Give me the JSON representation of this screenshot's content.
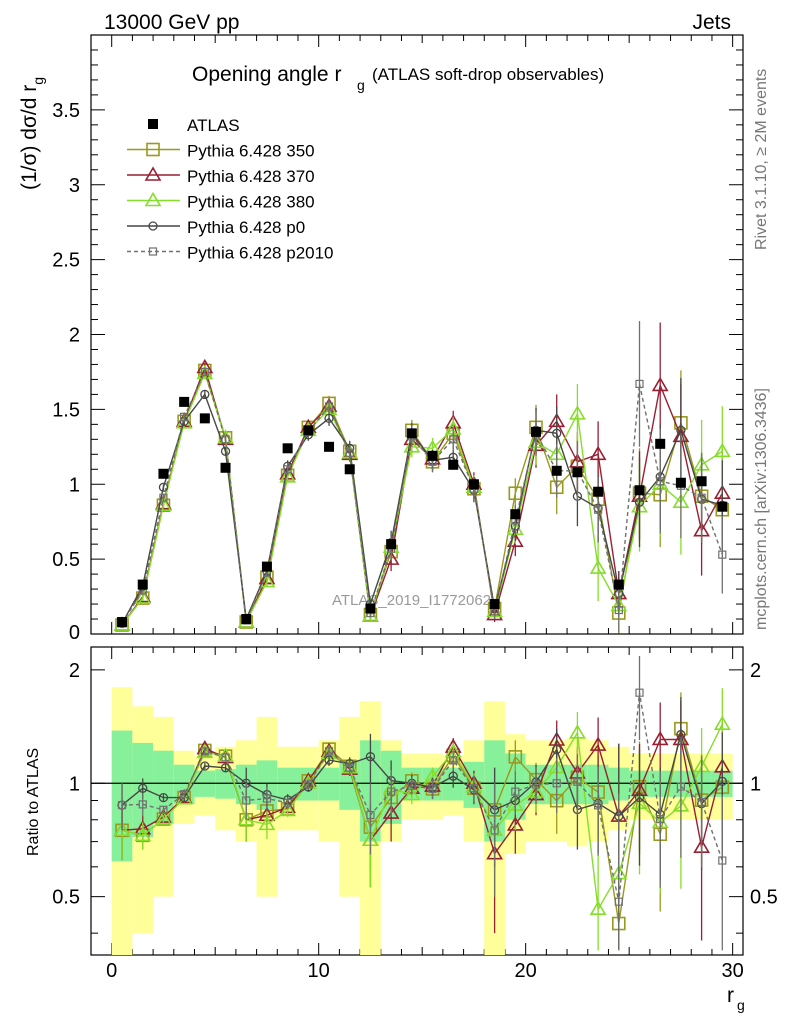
{
  "header": {
    "left": "13000 GeV pp",
    "right": "Jets"
  },
  "side_labels": {
    "rivet": "Rivet 3.1.10, ≥ 2M events",
    "mcplots": "mcplots.cern.ch [arXiv:1306.3436]"
  },
  "watermark": "ATLAS_2019_I1772062",
  "chart_data": {
    "type": "line",
    "title_main": "Opening angle r",
    "title_sub": "g",
    "title_suffix": "(ATLAS soft-drop observables)",
    "ylabel_main": "(1/σ) dσ/d r",
    "ylabel_sub": "g",
    "xlabel_main": "r",
    "xlabel_sub": "g",
    "ratio_ylabel": "Ratio to ATLAS",
    "xlim": [
      -1,
      30.5
    ],
    "ylim": [
      0,
      4
    ],
    "ratio_ylim": [
      0.35,
      2.3
    ],
    "x_ticks": [
      "0",
      "10",
      "20",
      "30"
    ],
    "y_ticks": [
      "0.5",
      "1",
      "1.5",
      "2",
      "2.5",
      "3",
      "3.5"
    ],
    "y_ticks_zero": "0",
    "ratio_ticks": [
      "0.5",
      "1",
      "2"
    ],
    "legend_position": "top-left",
    "x": [
      0.5,
      1.5,
      2.5,
      3.5,
      4.5,
      5.5,
      6.5,
      7.5,
      8.5,
      9.5,
      10.5,
      11.5,
      12.5,
      13.5,
      14.5,
      15.5,
      16.5,
      17.5,
      18.5,
      19.5,
      20.5,
      21.5,
      22.5,
      23.5,
      24.5,
      25.5,
      26.5,
      27.5,
      28.5,
      29.5
    ],
    "data": {
      "name": "ATLAS",
      "values": [
        0.08,
        0.33,
        1.07,
        1.55,
        1.44,
        1.11,
        0.1,
        0.45,
        1.24,
        1.36,
        1.25,
        1.1,
        0.17,
        0.6,
        1.34,
        1.19,
        1.13,
        1.0,
        0.2,
        0.8,
        1.35,
        1.09,
        1.08,
        0.95,
        0.33,
        0.96,
        1.27,
        1.01,
        1.02,
        0.85
      ]
    },
    "ratio_bands": {
      "green_half": [
        0.38,
        0.28,
        0.22,
        0.12,
        0.08,
        0.09,
        0.12,
        0.15,
        0.1,
        0.1,
        0.1,
        0.15,
        0.3,
        0.22,
        0.1,
        0.1,
        0.1,
        0.14,
        0.3,
        0.2,
        0.12,
        0.12,
        0.12,
        0.12,
        0.1,
        0.08,
        0.08,
        0.08,
        0.08,
        0.08
      ],
      "yellow_half": [
        0.8,
        0.6,
        0.5,
        0.22,
        0.18,
        0.25,
        0.3,
        0.5,
        0.25,
        0.25,
        0.3,
        0.5,
        0.65,
        0.3,
        0.2,
        0.2,
        0.18,
        0.3,
        0.65,
        0.35,
        0.3,
        0.3,
        0.32,
        0.3,
        0.25,
        0.2,
        0.2,
        0.2,
        0.2,
        0.2
      ]
    },
    "series": [
      {
        "name": "Pythia 6.428 350",
        "color": "#99991f",
        "marker": "square-open",
        "dash": "none",
        "err": [
          0.01,
          0.02,
          0.02,
          0.03,
          0.03,
          0.03,
          0.01,
          0.03,
          0.04,
          0.04,
          0.05,
          0.05,
          0.03,
          0.08,
          0.07,
          0.07,
          0.08,
          0.08,
          0.05,
          0.1,
          0.15,
          0.18,
          0.2,
          0.22,
          0.15,
          0.3,
          0.35,
          0.35,
          0.3,
          0.3
        ],
        "values": [
          0.06,
          0.24,
          0.86,
          1.42,
          1.76,
          1.31,
          0.08,
          0.38,
          1.06,
          1.38,
          1.54,
          1.22,
          0.13,
          0.55,
          1.36,
          1.15,
          1.34,
          0.97,
          0.17,
          0.94,
          1.38,
          0.98,
          1.12,
          0.9,
          0.14,
          0.94,
          0.93,
          1.41,
          0.92,
          0.83
        ]
      },
      {
        "name": "Pythia 6.428 370",
        "color": "#991f33",
        "marker": "triangle-open",
        "dash": "none",
        "err": [
          0.01,
          0.02,
          0.02,
          0.03,
          0.03,
          0.03,
          0.01,
          0.03,
          0.04,
          0.04,
          0.05,
          0.05,
          0.03,
          0.08,
          0.07,
          0.07,
          0.08,
          0.08,
          0.05,
          0.1,
          0.15,
          0.18,
          0.2,
          0.22,
          0.15,
          0.3,
          0.42,
          0.35,
          0.3,
          0.3
        ],
        "values": [
          0.06,
          0.25,
          0.87,
          1.42,
          1.78,
          1.3,
          0.08,
          0.37,
          1.07,
          1.38,
          1.52,
          1.2,
          0.12,
          0.5,
          1.3,
          1.17,
          1.41,
          1.0,
          0.13,
          0.62,
          1.26,
          1.42,
          1.15,
          1.2,
          0.27,
          0.92,
          1.66,
          1.32,
          0.69,
          0.94
        ]
      },
      {
        "name": "Pythia 6.428 380",
        "color": "#85de29",
        "marker": "triangle-open",
        "dash": "none",
        "err": [
          0.01,
          0.02,
          0.02,
          0.03,
          0.03,
          0.03,
          0.01,
          0.03,
          0.04,
          0.04,
          0.05,
          0.05,
          0.03,
          0.08,
          0.07,
          0.07,
          0.08,
          0.08,
          0.05,
          0.1,
          0.15,
          0.18,
          0.2,
          0.22,
          0.15,
          0.3,
          0.35,
          0.35,
          0.3,
          0.3
        ],
        "values": [
          0.06,
          0.24,
          0.86,
          1.41,
          1.74,
          1.31,
          0.08,
          0.35,
          1.05,
          1.36,
          1.5,
          1.21,
          0.12,
          0.58,
          1.25,
          1.24,
          1.37,
          0.98,
          0.15,
          0.7,
          1.28,
          1.2,
          1.47,
          0.44,
          0.19,
          0.85,
          1.0,
          0.88,
          1.13,
          1.22
        ]
      },
      {
        "name": "Pythia 6.428 p0",
        "color": "#474747",
        "marker": "circle-open",
        "dash": "none",
        "err": [
          0.01,
          0.02,
          0.02,
          0.03,
          0.03,
          0.03,
          0.01,
          0.03,
          0.04,
          0.04,
          0.05,
          0.05,
          0.03,
          0.08,
          0.07,
          0.07,
          0.08,
          0.08,
          0.05,
          0.1,
          0.15,
          0.18,
          0.2,
          0.22,
          0.15,
          0.3,
          0.35,
          0.35,
          0.3,
          0.3
        ],
        "values": [
          0.07,
          0.32,
          0.98,
          1.42,
          1.6,
          1.22,
          0.1,
          0.42,
          1.12,
          1.33,
          1.44,
          1.24,
          0.2,
          0.61,
          1.34,
          1.16,
          1.18,
          0.96,
          0.17,
          0.72,
          1.36,
          1.34,
          0.92,
          0.84,
          0.27,
          0.88,
          1.05,
          1.36,
          0.9,
          0.86
        ]
      },
      {
        "name": "Pythia 6.428 p2010",
        "color": "#707070",
        "marker": "square-small",
        "dash": "dashed",
        "err": [
          0.01,
          0.02,
          0.02,
          0.03,
          0.03,
          0.03,
          0.01,
          0.03,
          0.04,
          0.04,
          0.05,
          0.05,
          0.03,
          0.08,
          0.07,
          0.07,
          0.08,
          0.08,
          0.05,
          0.1,
          0.15,
          0.18,
          0.2,
          0.22,
          0.15,
          0.42,
          0.35,
          0.35,
          0.3,
          0.26
        ],
        "values": [
          0.07,
          0.29,
          0.91,
          1.45,
          1.75,
          1.3,
          0.09,
          0.41,
          1.1,
          1.35,
          1.52,
          1.21,
          0.14,
          0.57,
          1.32,
          1.15,
          1.3,
          0.97,
          0.15,
          0.76,
          1.34,
          1.09,
          1.09,
          0.83,
          0.16,
          1.67,
          1.02,
          0.99,
          0.91,
          0.53
        ]
      }
    ]
  }
}
